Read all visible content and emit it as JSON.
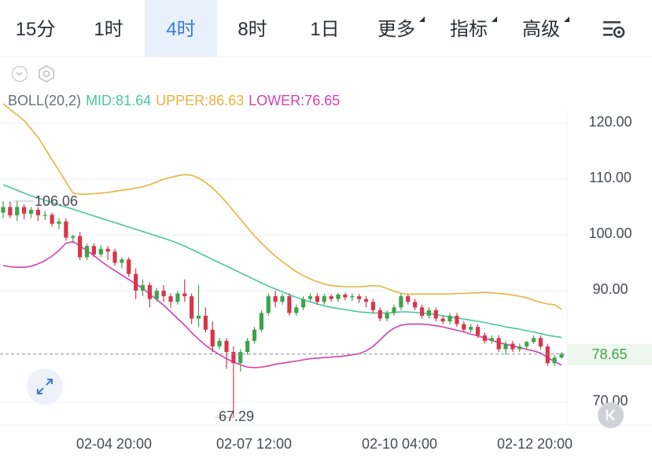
{
  "tabs": [
    {
      "label": "15分",
      "active": false,
      "dropdown": false
    },
    {
      "label": "1时",
      "active": false,
      "dropdown": false
    },
    {
      "label": "4时",
      "active": true,
      "dropdown": false
    },
    {
      "label": "8时",
      "active": false,
      "dropdown": false
    },
    {
      "label": "1日",
      "active": false,
      "dropdown": false
    },
    {
      "label": "更多",
      "active": false,
      "dropdown": true
    },
    {
      "label": "指标",
      "active": false,
      "dropdown": true
    },
    {
      "label": "高级",
      "active": false,
      "dropdown": true
    }
  ],
  "settings_icon": "settings-list-icon",
  "indicator": {
    "name": "BOLL(20,2)",
    "mid": "MID:81.64",
    "upper": "UPPER:86.63",
    "lower": "LOWER:76.65"
  },
  "colors": {
    "up": "#3fa34d",
    "down": "#d7364a",
    "mid": "#4cc5a0",
    "upper": "#e8b23c",
    "lower": "#d63fb0",
    "accent": "#3a7bd5"
  },
  "current_price": "78.65",
  "annotations": {
    "high": "106.06",
    "low": "67.29"
  },
  "chart_data": {
    "type": "candlestick",
    "interval": "4h",
    "ylim": [
      65,
      125
    ],
    "y_ticks": [
      "120.00",
      "110.00",
      "100.00",
      "90.00",
      "70.00"
    ],
    "x_ticks": [
      "02-04 20:00",
      "02-07 12:00",
      "02-10 04:00",
      "02-12 20:00"
    ],
    "candles": [
      [
        104.0,
        105.0,
        103.0,
        106.0
      ],
      [
        105.0,
        103.5,
        103.0,
        106.0
      ],
      [
        103.5,
        105.0,
        102.5,
        106.06
      ],
      [
        105.0,
        103.8,
        102.8,
        105.5
      ],
      [
        103.8,
        104.5,
        103.0,
        105.0
      ],
      [
        104.5,
        103.5,
        102.5,
        105.0
      ],
      [
        103.5,
        103.6,
        102.7,
        104.2
      ],
      [
        103.6,
        102.0,
        101.5,
        104.0
      ],
      [
        102.0,
        102.4,
        101.0,
        103.0
      ],
      [
        102.4,
        99.5,
        99.0,
        103.0
      ],
      [
        99.5,
        99.8,
        98.5,
        100.0
      ],
      [
        99.8,
        96.0,
        95.5,
        100.5
      ],
      [
        96.0,
        98.0,
        95.5,
        98.5
      ],
      [
        98.0,
        96.5,
        96.0,
        98.5
      ],
      [
        96.5,
        97.5,
        96.0,
        98.2
      ],
      [
        97.5,
        97.0,
        95.5,
        98.0
      ],
      [
        97.0,
        95.0,
        94.5,
        97.5
      ],
      [
        95.0,
        95.6,
        94.0,
        96.0
      ],
      [
        95.6,
        93.0,
        92.5,
        96.0
      ],
      [
        93.0,
        90.0,
        88.5,
        94.0
      ],
      [
        90.0,
        91.0,
        89.0,
        92.0
      ],
      [
        91.0,
        88.5,
        87.0,
        91.5
      ],
      [
        88.5,
        90.0,
        88.0,
        90.5
      ],
      [
        90.0,
        89.0,
        88.0,
        91.0
      ],
      [
        89.0,
        88.0,
        87.0,
        89.5
      ],
      [
        88.0,
        89.5,
        87.5,
        90.0
      ],
      [
        89.5,
        89.0,
        88.0,
        92.0
      ],
      [
        89.0,
        85.0,
        84.0,
        89.5
      ],
      [
        85.0,
        85.5,
        83.5,
        91.0
      ],
      [
        85.5,
        83.0,
        82.5,
        87.0
      ],
      [
        83.0,
        80.0,
        79.0,
        84.5
      ],
      [
        80.0,
        81.0,
        79.5,
        81.5
      ],
      [
        81.0,
        79.0,
        76.0,
        81.5
      ],
      [
        79.0,
        77.0,
        67.29,
        80.0
      ],
      [
        77.0,
        79.0,
        75.5,
        79.5
      ],
      [
        79.0,
        81.0,
        78.5,
        81.5
      ],
      [
        81.0,
        83.0,
        80.5,
        83.5
      ],
      [
        83.0,
        86.0,
        82.5,
        86.5
      ],
      [
        86.0,
        89.0,
        85.5,
        89.5
      ],
      [
        89.0,
        88.0,
        87.0,
        90.0
      ],
      [
        88.0,
        89.0,
        87.5,
        89.5
      ],
      [
        89.0,
        86.0,
        85.5,
        89.5
      ],
      [
        86.0,
        87.0,
        85.5,
        87.5
      ],
      [
        87.0,
        88.5,
        86.5,
        89.0
      ],
      [
        88.5,
        89.0,
        88.0,
        89.5
      ],
      [
        89.0,
        88.0,
        87.5,
        89.5
      ],
      [
        88.0,
        89.0,
        87.5,
        89.5
      ],
      [
        89.0,
        88.5,
        88.0,
        89.3
      ],
      [
        88.5,
        89.3,
        88.0,
        89.6
      ],
      [
        89.3,
        88.8,
        88.3,
        89.6
      ],
      [
        88.8,
        89.0,
        88.2,
        89.5
      ],
      [
        89.0,
        88.5,
        87.8,
        89.4
      ],
      [
        88.5,
        88.0,
        87.0,
        89.0
      ],
      [
        88.0,
        86.5,
        86.0,
        88.5
      ],
      [
        86.5,
        85.0,
        84.5,
        87.0
      ],
      [
        85.0,
        86.0,
        84.5,
        86.5
      ],
      [
        86.0,
        87.0,
        85.5,
        87.5
      ],
      [
        87.0,
        89.0,
        86.5,
        89.5
      ],
      [
        89.0,
        88.0,
        87.5,
        89.3
      ],
      [
        88.0,
        87.0,
        86.5,
        88.5
      ],
      [
        87.0,
        85.5,
        85.0,
        87.5
      ],
      [
        85.5,
        86.5,
        85.0,
        87.0
      ],
      [
        86.5,
        85.0,
        84.5,
        87.0
      ],
      [
        85.0,
        84.5,
        84.0,
        85.5
      ],
      [
        84.5,
        85.5,
        84.0,
        86.0
      ],
      [
        85.5,
        84.0,
        83.5,
        86.0
      ],
      [
        84.0,
        83.0,
        82.5,
        84.5
      ],
      [
        83.0,
        83.5,
        82.5,
        84.0
      ],
      [
        83.5,
        82.0,
        81.5,
        84.0
      ],
      [
        82.0,
        81.0,
        80.5,
        82.5
      ],
      [
        81.0,
        81.5,
        80.5,
        82.0
      ],
      [
        81.5,
        79.5,
        79.0,
        82.0
      ],
      [
        79.5,
        80.5,
        78.5,
        81.0
      ],
      [
        80.5,
        79.5,
        79.0,
        81.0
      ],
      [
        79.5,
        80.0,
        79.0,
        80.5
      ],
      [
        80.0,
        80.8,
        79.5,
        81.0
      ],
      [
        80.8,
        81.5,
        80.5,
        82.0
      ],
      [
        81.5,
        80.0,
        79.5,
        82.0
      ],
      [
        80.0,
        77.0,
        76.5,
        80.5
      ],
      [
        77.0,
        78.0,
        76.5,
        78.5
      ],
      [
        78.0,
        78.65,
        77.8,
        79.0
      ]
    ],
    "series": [
      {
        "name": "MID",
        "values": [
          109.0,
          108.5,
          108.0,
          107.5,
          107.0,
          106.6,
          106.2,
          105.8,
          105.4,
          105.0,
          104.6,
          104.2,
          103.8,
          103.4,
          103.0,
          102.6,
          102.2,
          101.8,
          101.4,
          101.0,
          100.6,
          100.2,
          99.8,
          99.4,
          99.0,
          98.5,
          98.0,
          97.4,
          96.8,
          96.2,
          95.6,
          95.0,
          94.4,
          93.8,
          93.2,
          92.6,
          92.0,
          91.4,
          90.8,
          90.3,
          89.8,
          89.3,
          88.8,
          88.4,
          88.0,
          87.6,
          87.3,
          87.0,
          86.8,
          86.6,
          86.4,
          86.2,
          86.1,
          86.0,
          86.0,
          86.0,
          86.1,
          86.2,
          86.2,
          86.1,
          86.0,
          85.9,
          85.7,
          85.5,
          85.3,
          85.1,
          84.9,
          84.7,
          84.5,
          84.3,
          84.0,
          83.8,
          83.5,
          83.3,
          83.1,
          82.8,
          82.6,
          82.3,
          82.0,
          81.8,
          81.64
        ]
      },
      {
        "name": "UPPER",
        "values": [
          123.5,
          122.5,
          121.5,
          120.5,
          119.0,
          117.5,
          115.5,
          113.5,
          111.5,
          109.5,
          107.5,
          107.3,
          107.3,
          107.4,
          107.5,
          107.6,
          107.8,
          108.0,
          108.2,
          108.4,
          108.6,
          109.0,
          109.5,
          110.0,
          110.3,
          110.6,
          110.8,
          110.7,
          110.2,
          109.4,
          108.4,
          107.2,
          105.8,
          104.3,
          102.8,
          101.3,
          99.8,
          98.5,
          97.3,
          96.2,
          95.2,
          94.3,
          93.4,
          92.7,
          92.1,
          91.6,
          91.2,
          90.9,
          90.8,
          90.7,
          90.7,
          90.7,
          90.8,
          90.9,
          90.8,
          90.4,
          89.9,
          89.5,
          89.4,
          89.4,
          89.4,
          89.4,
          89.4,
          89.4,
          89.4,
          89.5,
          89.5,
          89.6,
          89.6,
          89.7,
          89.6,
          89.5,
          89.4,
          89.2,
          89.0,
          88.7,
          88.3,
          87.9,
          87.6,
          87.5,
          86.63
        ]
      },
      {
        "name": "LOWER",
        "values": [
          94.5,
          94.3,
          94.2,
          94.2,
          94.4,
          94.8,
          95.4,
          96.2,
          97.2,
          98.5,
          98.8,
          98.0,
          97.2,
          96.3,
          95.3,
          94.4,
          93.6,
          92.8,
          92.0,
          91.2,
          90.4,
          89.4,
          88.4,
          87.4,
          86.2,
          85.0,
          83.8,
          82.5,
          81.3,
          80.2,
          79.3,
          78.5,
          77.8,
          77.2,
          76.7,
          76.3,
          76.2,
          76.3,
          76.5,
          76.8,
          77.0,
          77.2,
          77.4,
          77.6,
          77.8,
          77.9,
          78.0,
          78.1,
          78.2,
          78.3,
          78.5,
          78.7,
          79.2,
          80.0,
          81.2,
          82.4,
          83.3,
          83.8,
          84.0,
          84.0,
          84.0,
          83.9,
          83.7,
          83.5,
          83.2,
          82.9,
          82.6,
          82.2,
          81.9,
          81.5,
          81.1,
          80.7,
          80.4,
          80.1,
          79.8,
          79.5,
          79.2,
          78.8,
          78.0,
          77.3,
          76.65
        ]
      }
    ]
  }
}
